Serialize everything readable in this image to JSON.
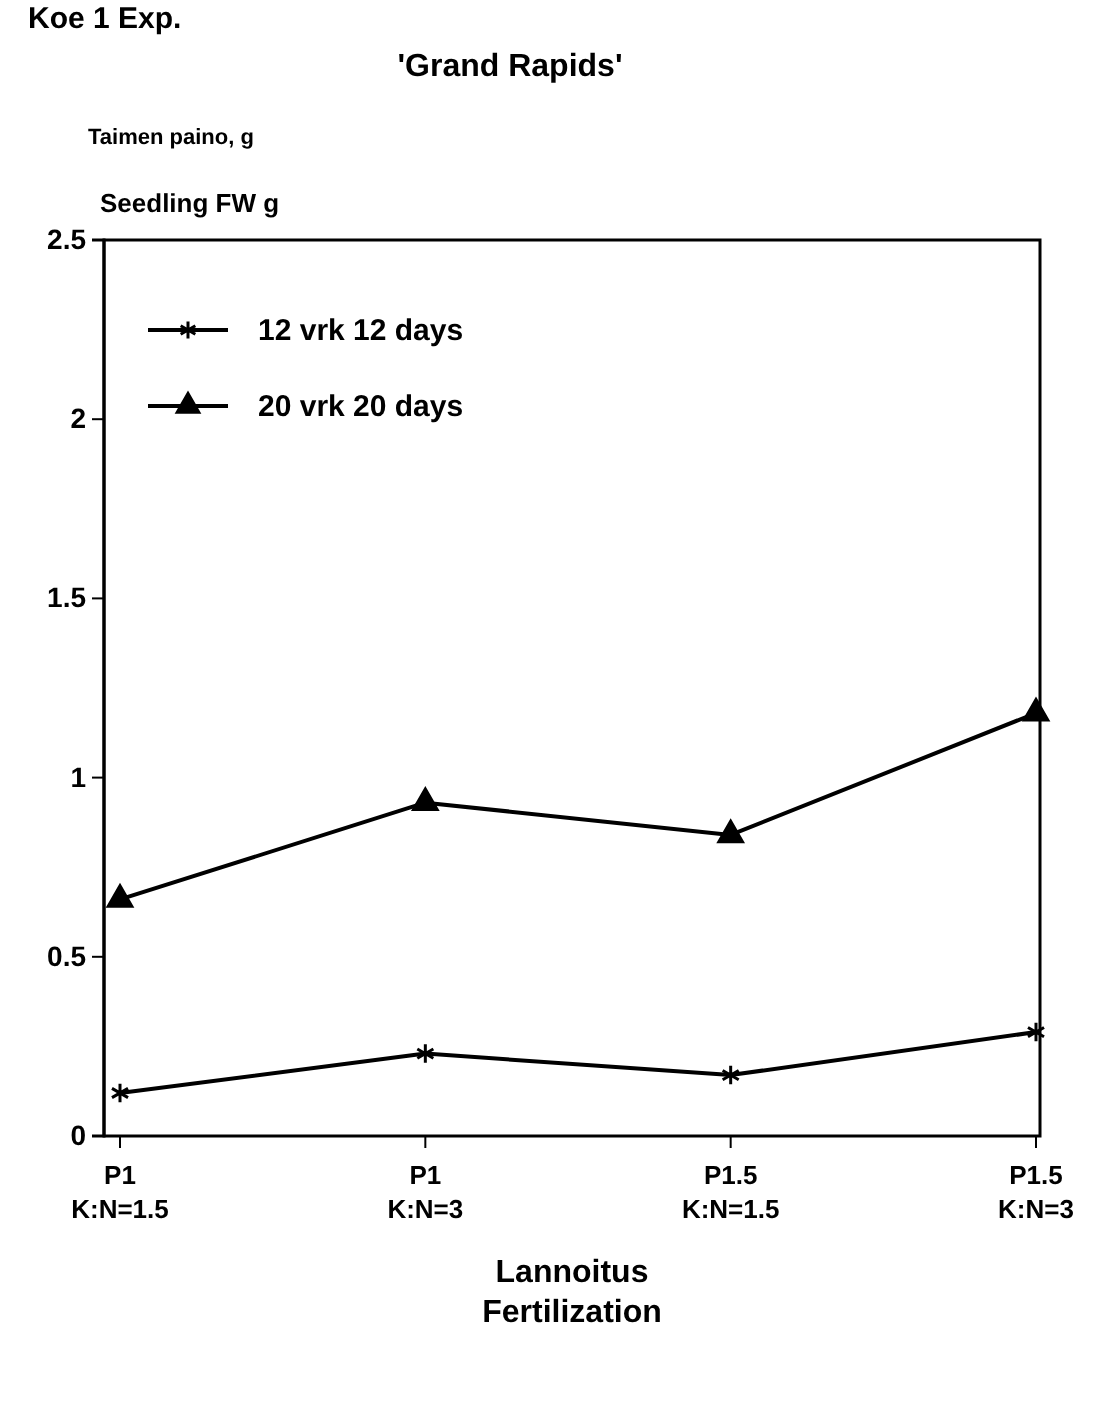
{
  "chart_data": {
    "type": "line",
    "title": "'Grand Rapids'",
    "ylabel": "Seedling FW g",
    "xlabel": "Lannoitus Fertilization",
    "annotations": [
      "Koe 1 Exp.",
      "Taimen paino, g"
    ],
    "categories": [
      "P1 K:N=1.5",
      "P1 K:N=3",
      "P1.5 K:N=1.5",
      "P1.5 K:N=3"
    ],
    "series": [
      {
        "name": "12 vrk 12 days",
        "color": "#000000",
        "marker": "cross",
        "values": [
          0.12,
          0.23,
          0.17,
          0.29
        ]
      },
      {
        "name": "20 vrk 20 days",
        "color": "#000000",
        "marker": "triangle",
        "values": [
          0.66,
          0.93,
          0.84,
          1.18
        ]
      }
    ],
    "ylim": [
      0,
      2.5
    ],
    "yticks": [
      0,
      0.5,
      1,
      1.5,
      2,
      2.5
    ],
    "grid": false,
    "legend": "top left",
    "line_style": "solid"
  }
}
